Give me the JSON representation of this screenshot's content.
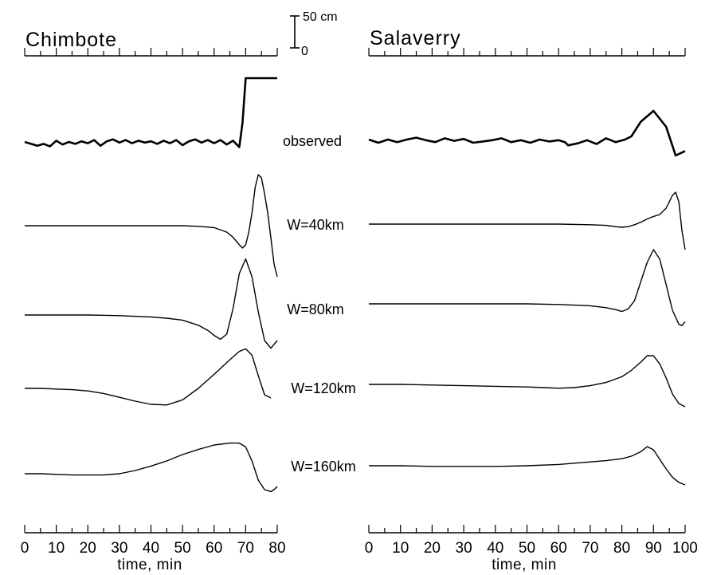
{
  "chart_data": [
    {
      "type": "line",
      "title": "Chimbote",
      "xlabel": "time,  min",
      "ylabel": "",
      "x_ticks": [
        "0",
        "10",
        "20",
        "30",
        "40",
        "50",
        "60",
        "70",
        "80"
      ],
      "xlim": [
        0,
        80
      ],
      "series": [
        {
          "name": "observed",
          "x": [
            0,
            2,
            4,
            6,
            8,
            10,
            12,
            14,
            16,
            18,
            20,
            22,
            24,
            26,
            28,
            30,
            32,
            34,
            36,
            38,
            40,
            42,
            44,
            46,
            48,
            50,
            52,
            54,
            56,
            58,
            60,
            62,
            64,
            66,
            68,
            69,
            70,
            72,
            74,
            76,
            78,
            80
          ],
          "y": [
            0,
            -3,
            -6,
            -3,
            -7,
            2,
            -4,
            0,
            -3,
            1,
            -2,
            3,
            -6,
            1,
            4,
            -1,
            3,
            -2,
            2,
            -1,
            1,
            -3,
            2,
            -2,
            3,
            -5,
            1,
            4,
            -1,
            3,
            -2,
            3,
            -4,
            2,
            -8,
            30,
            100,
            100,
            100,
            100,
            100,
            100
          ]
        },
        {
          "name": "W=40km",
          "x": [
            0,
            10,
            20,
            30,
            40,
            50,
            55,
            60,
            64,
            66,
            68,
            69,
            70,
            71,
            72,
            73,
            74,
            75,
            76,
            77,
            78,
            79,
            80
          ],
          "y": [
            0,
            0,
            0,
            0,
            0,
            0,
            -1,
            -3,
            -10,
            -18,
            -30,
            -35,
            -30,
            -10,
            20,
            60,
            80,
            75,
            50,
            20,
            -20,
            -60,
            -80
          ]
        },
        {
          "name": "W=80km",
          "x": [
            0,
            10,
            20,
            30,
            40,
            45,
            50,
            55,
            58,
            60,
            62,
            64,
            66,
            68,
            70,
            72,
            74,
            76,
            78,
            80
          ],
          "y": [
            0,
            0,
            0,
            -1,
            -3,
            -5,
            -8,
            -16,
            -24,
            -32,
            -38,
            -30,
            10,
            65,
            88,
            60,
            5,
            -40,
            -52,
            -40
          ]
        },
        {
          "name": "W=120km",
          "x": [
            0,
            5,
            10,
            15,
            20,
            25,
            30,
            35,
            40,
            45,
            50,
            55,
            60,
            65,
            68,
            70,
            72,
            74,
            76,
            78
          ],
          "y": [
            0,
            0,
            -1,
            -2,
            -4,
            -8,
            -14,
            -20,
            -25,
            -26,
            -18,
            0,
            22,
            45,
            58,
            62,
            52,
            20,
            -10,
            -15
          ]
        },
        {
          "name": "W=160km",
          "x": [
            0,
            5,
            10,
            15,
            20,
            25,
            30,
            35,
            40,
            45,
            50,
            55,
            60,
            65,
            68,
            70,
            72,
            74,
            76,
            78,
            79,
            80
          ],
          "y": [
            0,
            0,
            -1,
            -2,
            -2,
            -2,
            0,
            5,
            12,
            20,
            30,
            38,
            45,
            48,
            48,
            42,
            20,
            -10,
            -25,
            -28,
            -25,
            -20
          ]
        }
      ]
    },
    {
      "type": "line",
      "title": "Salaverry",
      "xlabel": "time,  min",
      "ylabel": "",
      "x_ticks": [
        "0",
        "10",
        "20",
        "30",
        "40",
        "50",
        "60",
        "70",
        "80",
        "90",
        "100"
      ],
      "xlim": [
        0,
        100
      ],
      "series": [
        {
          "name": "observed",
          "x": [
            0,
            3,
            6,
            9,
            12,
            15,
            18,
            21,
            24,
            27,
            30,
            33,
            36,
            39,
            42,
            45,
            48,
            51,
            54,
            57,
            60,
            62,
            63,
            66,
            69,
            72,
            75,
            78,
            81,
            83,
            86,
            90,
            94,
            97,
            100
          ],
          "y": [
            0,
            -5,
            0,
            -4,
            0,
            3,
            -1,
            -4,
            2,
            -2,
            1,
            -5,
            -3,
            -1,
            2,
            -4,
            -1,
            -5,
            0,
            -3,
            -1,
            -4,
            -9,
            -6,
            -1,
            -7,
            2,
            -4,
            0,
            5,
            28,
            45,
            20,
            -25,
            -18
          ]
        },
        {
          "name": "W=40km",
          "x": [
            0,
            10,
            20,
            30,
            40,
            50,
            60,
            70,
            75,
            78,
            80,
            82,
            84,
            86,
            88,
            90,
            92,
            94,
            96,
            97,
            98,
            99,
            100
          ],
          "y": [
            0,
            0,
            0,
            0,
            0,
            0,
            0,
            -1,
            -2,
            -4,
            -5,
            -4,
            -1,
            3,
            8,
            12,
            15,
            25,
            45,
            50,
            35,
            -10,
            -40
          ]
        },
        {
          "name": "W=80km",
          "x": [
            0,
            10,
            20,
            30,
            40,
            50,
            60,
            65,
            70,
            75,
            78,
            80,
            82,
            84,
            86,
            88,
            90,
            92,
            94,
            96,
            98,
            99,
            100
          ],
          "y": [
            0,
            0,
            0,
            0,
            0,
            0,
            -1,
            -2,
            -3,
            -6,
            -9,
            -12,
            -8,
            5,
            35,
            65,
            85,
            70,
            30,
            -10,
            -32,
            -34,
            -28
          ]
        },
        {
          "name": "W=120km",
          "x": [
            0,
            10,
            20,
            30,
            40,
            50,
            55,
            60,
            65,
            70,
            75,
            80,
            83,
            86,
            88,
            90,
            92,
            94,
            96,
            98,
            100
          ],
          "y": [
            0,
            0,
            -1,
            -2,
            -3,
            -4,
            -5,
            -6,
            -5,
            -2,
            3,
            12,
            22,
            35,
            45,
            45,
            32,
            10,
            -15,
            -30,
            -35
          ]
        },
        {
          "name": "W=160km",
          "x": [
            0,
            10,
            20,
            30,
            40,
            50,
            60,
            65,
            70,
            75,
            80,
            83,
            86,
            88,
            90,
            92,
            94,
            96,
            98,
            100
          ],
          "y": [
            0,
            0,
            -1,
            -1,
            -1,
            0,
            2,
            4,
            6,
            8,
            11,
            15,
            22,
            30,
            25,
            10,
            -5,
            -18,
            -26,
            -30
          ]
        }
      ]
    }
  ],
  "scale_bar": {
    "top_label": "50 cm",
    "bottom_label": "0"
  }
}
